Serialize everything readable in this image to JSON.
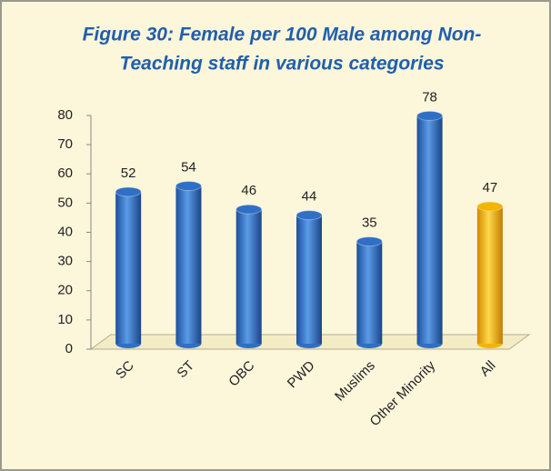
{
  "chart_data": {
    "type": "bar",
    "title": [
      "Figure 30: Female per 100 Male among Non-",
      "Teaching staff in various categories"
    ],
    "categories": [
      "SC",
      "ST",
      "OBC",
      "PWD",
      "Muslims",
      "Other Minority",
      "All"
    ],
    "values": [
      52,
      54,
      46,
      44,
      35,
      78,
      47
    ],
    "colors": [
      "#2f6fc6",
      "#2f6fc6",
      "#2f6fc6",
      "#2f6fc6",
      "#2f6fc6",
      "#2f6fc6",
      "#f2b500"
    ],
    "ylim": [
      0,
      80
    ],
    "yticks": [
      0,
      10,
      20,
      30,
      40,
      50,
      60,
      70,
      80
    ],
    "grid": false
  }
}
